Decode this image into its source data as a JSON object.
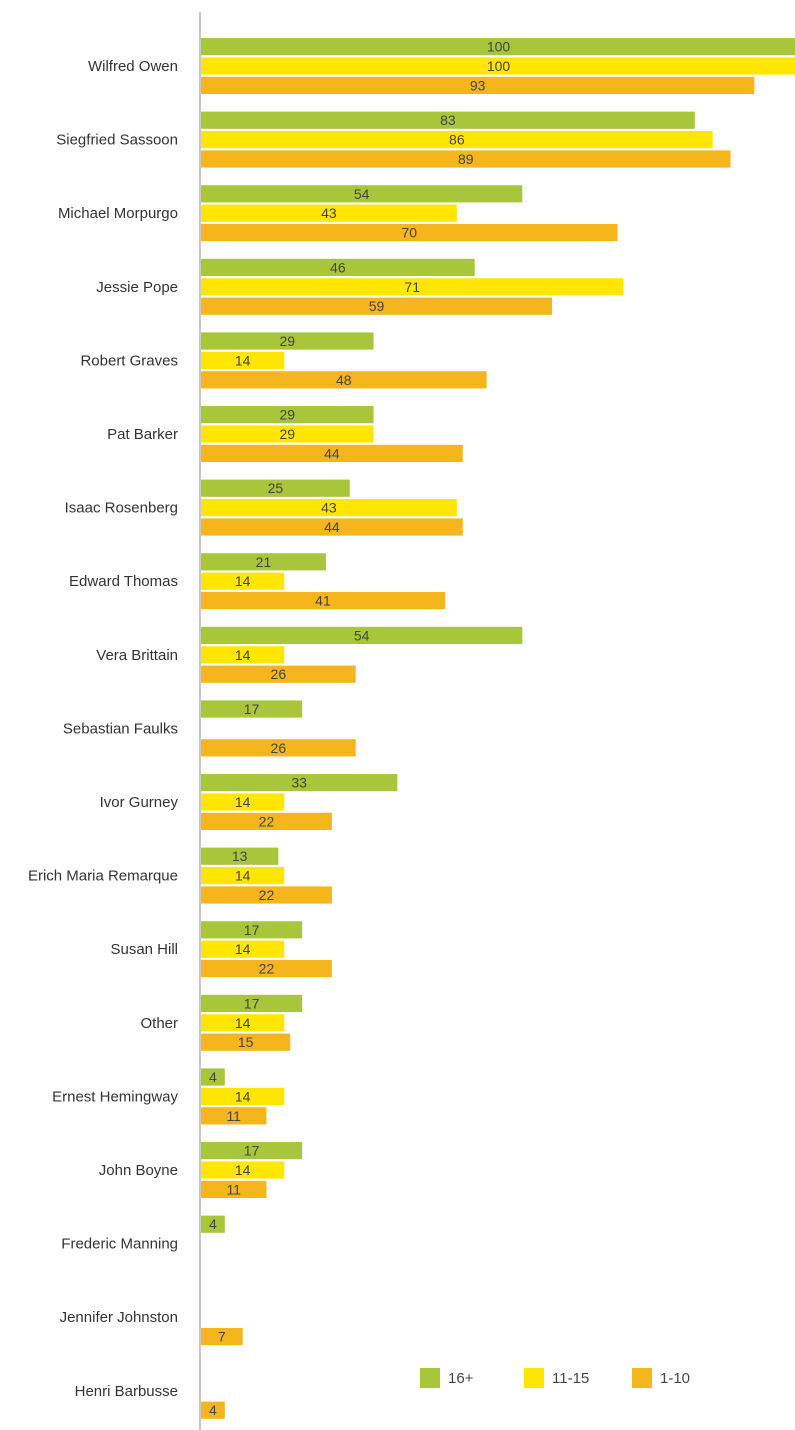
{
  "chart_data": {
    "type": "bar",
    "orientation": "horizontal",
    "categories": [
      "Wilfred Owen",
      "Siegfried Sassoon",
      "Michael Morpurgo",
      "Jessie Pope",
      "Robert Graves",
      "Pat Barker",
      "Isaac Rosenberg",
      "Edward Thomas",
      "Vera Brittain",
      "Sebastian Faulks",
      "Ivor Gurney",
      "Erich Maria Remarque",
      "Susan Hill",
      "Other",
      "Ernest Hemingway",
      "John Boyne",
      "Frederic Manning",
      "Jennifer Johnston",
      "Henri Barbusse"
    ],
    "series": [
      {
        "name": "16+",
        "color": "#a8c63a",
        "values": [
          100,
          83,
          54,
          46,
          29,
          29,
          25,
          21,
          54,
          17,
          33,
          13,
          17,
          17,
          4,
          17,
          4,
          null,
          null
        ]
      },
      {
        "name": "11-15",
        "color": "#ffe600",
        "values": [
          100,
          86,
          43,
          71,
          14,
          29,
          43,
          14,
          14,
          null,
          14,
          14,
          14,
          14,
          14,
          14,
          null,
          null,
          null
        ]
      },
      {
        "name": "1-10",
        "color": "#f5b51c",
        "values": [
          93,
          89,
          70,
          59,
          48,
          44,
          44,
          41,
          26,
          26,
          22,
          22,
          22,
          15,
          11,
          11,
          null,
          7,
          4
        ]
      }
    ],
    "xlim": [
      0,
      100
    ],
    "legend_position": "bottom-right",
    "grid": false
  }
}
